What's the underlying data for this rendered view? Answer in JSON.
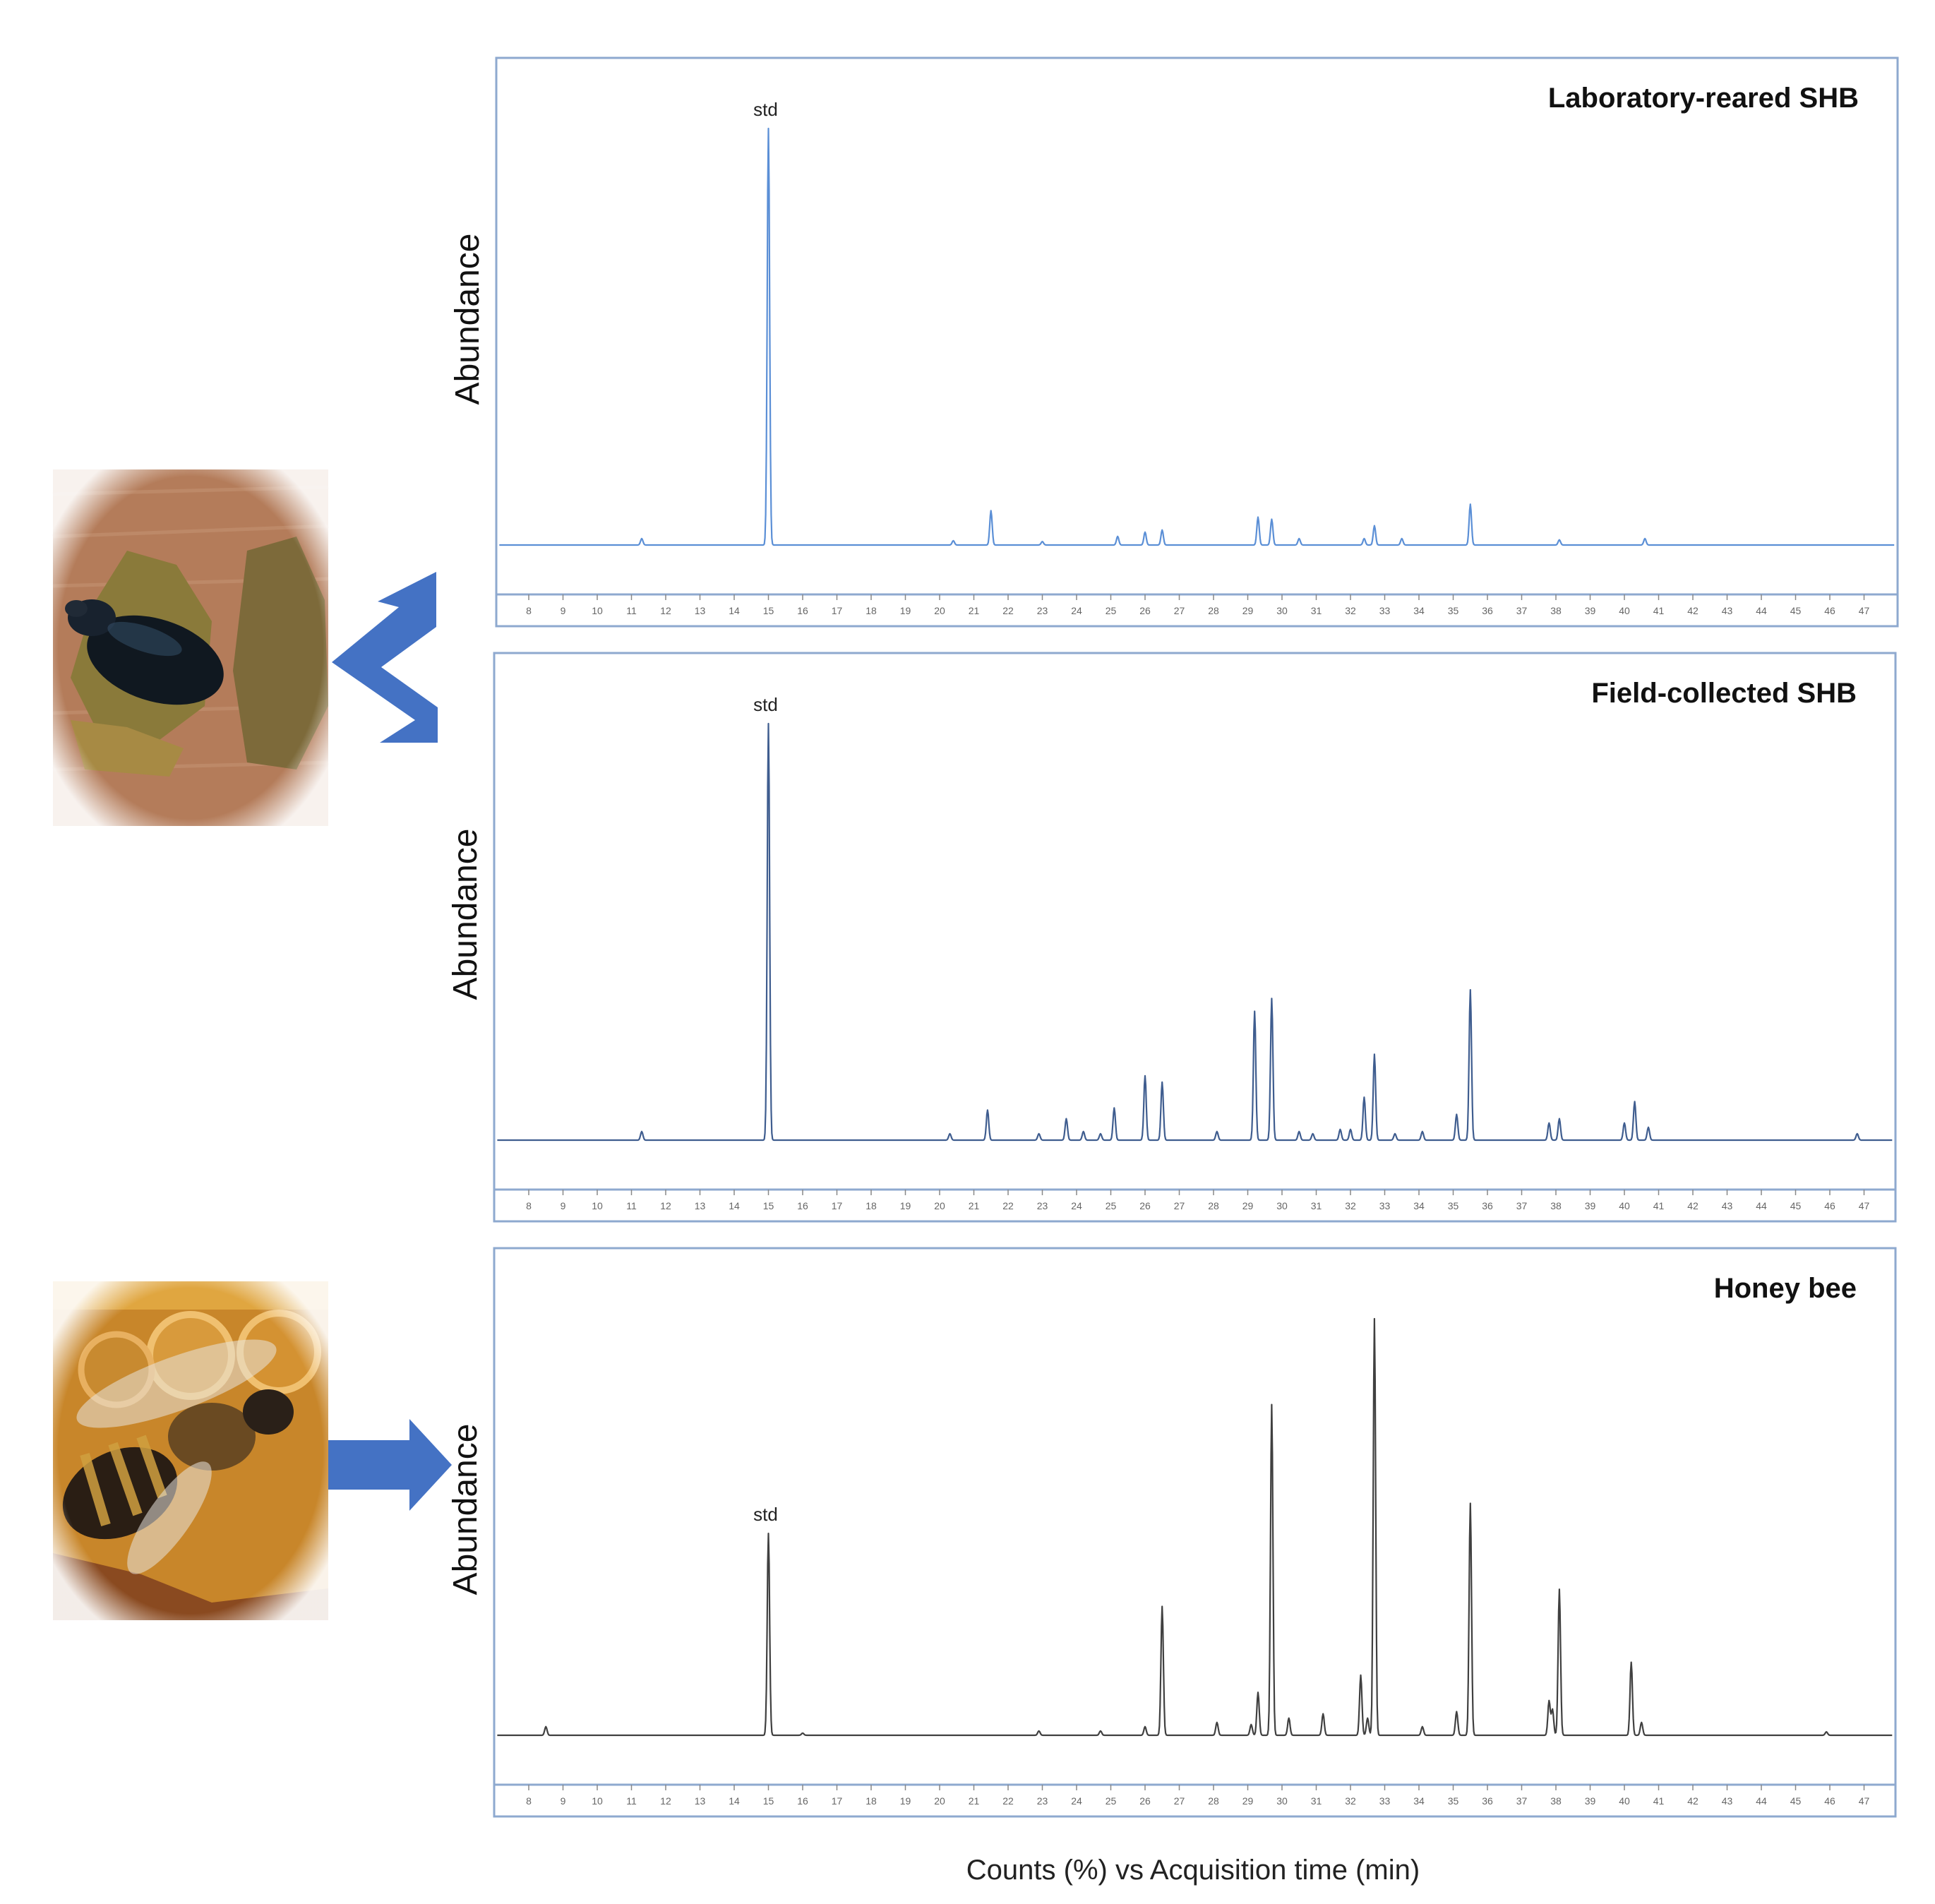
{
  "figure": {
    "xlabel": "Counts (%) vs Acquisition time (min)"
  },
  "colors": {
    "arrow": "#4472c4",
    "panel_border": "#8ea9cf",
    "lab_trace": "#5b8fd6",
    "field_trace": "#3f5d8f",
    "bee_trace": "#404040"
  },
  "icons": {
    "beetle_photo": "small-hive-beetle-photo",
    "bee_photo": "honey-bee-photo",
    "fork_arrow": "double-arrow-icon",
    "single_arrow": "right-arrow-icon"
  },
  "chart_data": [
    {
      "type": "line",
      "title": "Laboratory-reared SHB",
      "ylabel": "Abundance",
      "xlabel": "",
      "xlim": [
        7,
        48
      ],
      "ylim": [
        0,
        100
      ],
      "xticks": [
        "8",
        "9",
        "10",
        "11",
        "12",
        "13",
        "14",
        "15",
        "16",
        "17",
        "18",
        "19",
        "20",
        "21",
        "22",
        "23",
        "24",
        "25",
        "26",
        "27",
        "28",
        "29",
        "30",
        "31",
        "32",
        "33",
        "34",
        "35",
        "36",
        "37",
        "38",
        "39",
        "40",
        "41",
        "42",
        "43",
        "44",
        "45",
        "46",
        "47"
      ],
      "grid": false,
      "annotations": [
        {
          "text": "std",
          "x": 15.0
        }
      ],
      "baseline": 3,
      "peaks": [
        {
          "x": 11.3,
          "y": 4.5
        },
        {
          "x": 15.0,
          "y": 100
        },
        {
          "x": 20.4,
          "y": 4
        },
        {
          "x": 21.5,
          "y": 11
        },
        {
          "x": 23.0,
          "y": 3.8
        },
        {
          "x": 25.2,
          "y": 5
        },
        {
          "x": 26.0,
          "y": 6
        },
        {
          "x": 26.5,
          "y": 6.5
        },
        {
          "x": 29.3,
          "y": 9.5
        },
        {
          "x": 29.7,
          "y": 9
        },
        {
          "x": 30.5,
          "y": 4.5
        },
        {
          "x": 32.4,
          "y": 4.5
        },
        {
          "x": 32.7,
          "y": 7.5
        },
        {
          "x": 33.5,
          "y": 4.5
        },
        {
          "x": 35.5,
          "y": 12.5
        },
        {
          "x": 38.1,
          "y": 4.2
        },
        {
          "x": 40.6,
          "y": 4.5
        }
      ]
    },
    {
      "type": "line",
      "title": "Field-collected SHB",
      "ylabel": "Abundance",
      "xlabel": "",
      "xlim": [
        7,
        48
      ],
      "ylim": [
        0,
        100
      ],
      "xticks": [
        "8",
        "9",
        "10",
        "11",
        "12",
        "13",
        "14",
        "15",
        "16",
        "17",
        "18",
        "19",
        "20",
        "21",
        "22",
        "23",
        "24",
        "25",
        "26",
        "27",
        "28",
        "29",
        "30",
        "31",
        "32",
        "33",
        "34",
        "35",
        "36",
        "37",
        "38",
        "39",
        "40",
        "41",
        "42",
        "43",
        "44",
        "45",
        "46",
        "47"
      ],
      "grid": false,
      "annotations": [
        {
          "text": "std",
          "x": 15.0
        }
      ],
      "baseline": 3,
      "peaks": [
        {
          "x": 11.3,
          "y": 5
        },
        {
          "x": 15.0,
          "y": 100
        },
        {
          "x": 20.3,
          "y": 4.5
        },
        {
          "x": 21.4,
          "y": 10
        },
        {
          "x": 22.9,
          "y": 4.5
        },
        {
          "x": 23.7,
          "y": 8
        },
        {
          "x": 24.2,
          "y": 5
        },
        {
          "x": 24.7,
          "y": 4.5
        },
        {
          "x": 25.1,
          "y": 10.5
        },
        {
          "x": 26.0,
          "y": 18
        },
        {
          "x": 26.5,
          "y": 16.5
        },
        {
          "x": 28.1,
          "y": 5
        },
        {
          "x": 29.2,
          "y": 33
        },
        {
          "x": 29.7,
          "y": 36
        },
        {
          "x": 30.5,
          "y": 5
        },
        {
          "x": 30.9,
          "y": 4.5
        },
        {
          "x": 31.7,
          "y": 5.5
        },
        {
          "x": 32.0,
          "y": 5.5
        },
        {
          "x": 32.4,
          "y": 13
        },
        {
          "x": 32.7,
          "y": 23
        },
        {
          "x": 33.3,
          "y": 4.5
        },
        {
          "x": 34.1,
          "y": 5
        },
        {
          "x": 35.1,
          "y": 9
        },
        {
          "x": 35.5,
          "y": 38
        },
        {
          "x": 37.8,
          "y": 7
        },
        {
          "x": 38.1,
          "y": 8
        },
        {
          "x": 40.0,
          "y": 7
        },
        {
          "x": 40.3,
          "y": 12
        },
        {
          "x": 40.7,
          "y": 6
        },
        {
          "x": 46.8,
          "y": 4.5
        }
      ]
    },
    {
      "type": "line",
      "title": "Honey bee",
      "ylabel": "Abundance",
      "xlabel": "",
      "xlim": [
        7,
        48
      ],
      "ylim": [
        0,
        100
      ],
      "xticks": [
        "8",
        "9",
        "10",
        "11",
        "12",
        "13",
        "14",
        "15",
        "16",
        "17",
        "18",
        "19",
        "20",
        "21",
        "22",
        "23",
        "24",
        "25",
        "26",
        "27",
        "28",
        "29",
        "30",
        "31",
        "32",
        "33",
        "34",
        "35",
        "36",
        "37",
        "38",
        "39",
        "40",
        "41",
        "42",
        "43",
        "44",
        "45",
        "46",
        "47"
      ],
      "grid": false,
      "annotations": [
        {
          "text": "std",
          "x": 15.0
        }
      ],
      "baseline": 3,
      "peaks": [
        {
          "x": 8.5,
          "y": 5
        },
        {
          "x": 15.0,
          "y": 50
        },
        {
          "x": 16.0,
          "y": 3.5
        },
        {
          "x": 22.9,
          "y": 4
        },
        {
          "x": 24.7,
          "y": 4
        },
        {
          "x": 26.0,
          "y": 5
        },
        {
          "x": 26.5,
          "y": 33
        },
        {
          "x": 28.1,
          "y": 6
        },
        {
          "x": 29.1,
          "y": 5.5
        },
        {
          "x": 29.3,
          "y": 13
        },
        {
          "x": 29.7,
          "y": 80
        },
        {
          "x": 30.2,
          "y": 7
        },
        {
          "x": 31.2,
          "y": 8
        },
        {
          "x": 32.3,
          "y": 17
        },
        {
          "x": 32.5,
          "y": 7
        },
        {
          "x": 32.7,
          "y": 100
        },
        {
          "x": 34.1,
          "y": 5
        },
        {
          "x": 35.1,
          "y": 8.5
        },
        {
          "x": 35.5,
          "y": 57
        },
        {
          "x": 37.8,
          "y": 11
        },
        {
          "x": 37.9,
          "y": 9
        },
        {
          "x": 38.1,
          "y": 37
        },
        {
          "x": 40.2,
          "y": 20
        },
        {
          "x": 40.5,
          "y": 6
        },
        {
          "x": 45.9,
          "y": 3.8
        }
      ]
    }
  ]
}
